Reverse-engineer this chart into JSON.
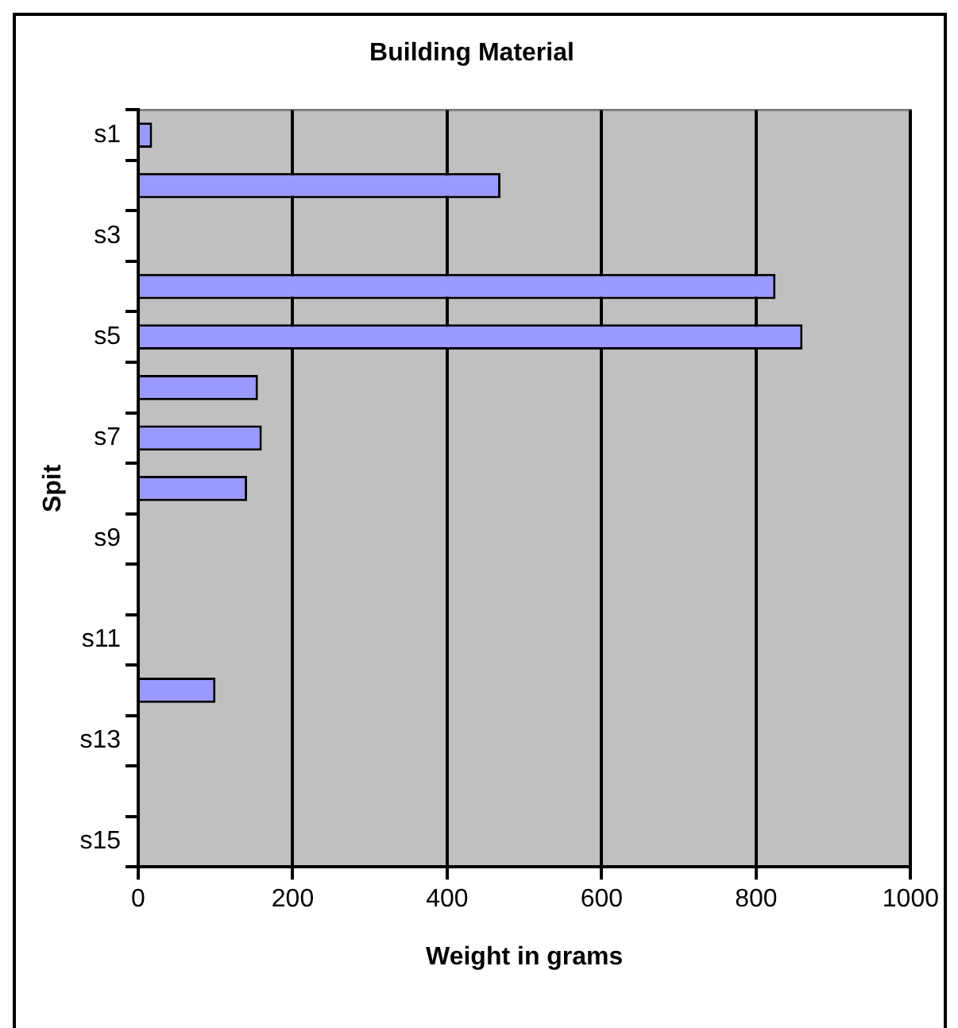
{
  "chart_data": {
    "type": "bar",
    "orientation": "horizontal",
    "title": "Building Material",
    "xlabel": "Weight in grams",
    "ylabel": "Spit",
    "categories": [
      "s1",
      null,
      "s3",
      null,
      "s5",
      null,
      "s7",
      null,
      "s9",
      null,
      "s11",
      null,
      "s13",
      null,
      "s15"
    ],
    "values": [
      18,
      469,
      null,
      825,
      860,
      155,
      160,
      141,
      null,
      null,
      null,
      100,
      null,
      null,
      null
    ],
    "color": "#9999ff",
    "xlim": [
      0,
      1000
    ],
    "xticks": [
      0,
      200,
      400,
      600,
      800,
      1000
    ],
    "grid": "x",
    "legend": false
  }
}
